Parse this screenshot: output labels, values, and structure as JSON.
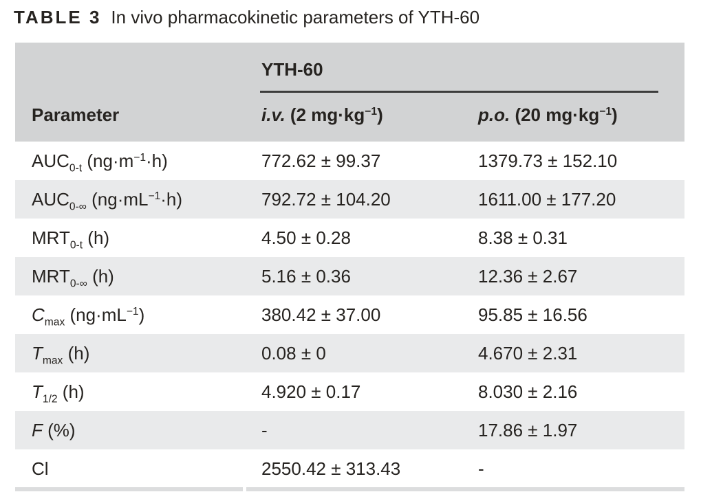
{
  "caption": {
    "tag": "TABLE 3",
    "text": "In vivo pharmacokinetic parameters of YTH-60"
  },
  "colors": {
    "page_bg": "#ffffff",
    "header_bg": "#d2d3d4",
    "alt_row_bg": "#e9eaeb",
    "bottom_border": "#dcddde",
    "rule": "#3c3c3c",
    "text": "#262320"
  },
  "table": {
    "group_header": "YTH-60",
    "col_headers": [
      {
        "name": "parameter",
        "segments": [
          {
            "t": "Parameter"
          }
        ]
      },
      {
        "name": "iv-dose",
        "segments": [
          {
            "t": "i.v.",
            "st": "i"
          },
          {
            "t": " (2 mg·kg"
          },
          {
            "t": "−1",
            "st": "sup"
          },
          {
            "t": ")"
          }
        ]
      },
      {
        "name": "po-dose",
        "segments": [
          {
            "t": "p.o.",
            "st": "i"
          },
          {
            "t": " (20 mg·kg"
          },
          {
            "t": "−1",
            "st": "sup"
          },
          {
            "t": ")"
          }
        ]
      }
    ],
    "rows": [
      {
        "id": "auc-0-t",
        "param": [
          {
            "t": "AUC"
          },
          {
            "t": "0-t",
            "st": "sub"
          },
          {
            "t": " (ng·m"
          },
          {
            "t": "−1",
            "st": "sup"
          },
          {
            "t": "·h)"
          }
        ],
        "iv": "772.62 ± 99.37",
        "po": "1379.73 ± 152.10"
      },
      {
        "id": "auc-0-inf",
        "param": [
          {
            "t": "AUC"
          },
          {
            "t": "0-∞",
            "st": "sub"
          },
          {
            "t": " (ng·mL"
          },
          {
            "t": "−1",
            "st": "sup"
          },
          {
            "t": "·h)"
          }
        ],
        "iv": "792.72 ± 104.20",
        "po": "1611.00 ± 177.20"
      },
      {
        "id": "mrt-0-t",
        "param": [
          {
            "t": "MRT"
          },
          {
            "t": "0-t",
            "st": "sub"
          },
          {
            "t": " (h)"
          }
        ],
        "iv": "4.50 ± 0.28",
        "po": "8.38 ± 0.31"
      },
      {
        "id": "mrt-0-inf",
        "param": [
          {
            "t": "MRT"
          },
          {
            "t": "0-∞",
            "st": "sub"
          },
          {
            "t": " (h)"
          }
        ],
        "iv": "5.16 ± 0.36",
        "po": "12.36 ± 2.67"
      },
      {
        "id": "cmax",
        "param": [
          {
            "t": "C",
            "st": "i"
          },
          {
            "t": "max",
            "st": "sub"
          },
          {
            "t": " (ng·mL"
          },
          {
            "t": "−1",
            "st": "sup"
          },
          {
            "t": ")"
          }
        ],
        "iv": "380.42 ± 37.00",
        "po": "95.85 ± 16.56"
      },
      {
        "id": "tmax",
        "param": [
          {
            "t": "T",
            "st": "i"
          },
          {
            "t": "max",
            "st": "sub"
          },
          {
            "t": " (h)"
          }
        ],
        "iv": "0.08 ± 0",
        "po": "4.670 ± 2.31"
      },
      {
        "id": "t-half",
        "param": [
          {
            "t": "T",
            "st": "i"
          },
          {
            "t": "1/2",
            "st": "sub"
          },
          {
            "t": " (h)"
          }
        ],
        "iv": "4.920 ± 0.17",
        "po": "8.030 ± 2.16"
      },
      {
        "id": "f-percent",
        "param": [
          {
            "t": "F",
            "st": "i"
          },
          {
            "t": " (%)"
          }
        ],
        "iv": "-",
        "po": "17.86 ± 1.97"
      },
      {
        "id": "cl",
        "param": [
          {
            "t": "Cl"
          }
        ],
        "iv": "2550.42 ± 313.43",
        "po": "-"
      }
    ]
  }
}
